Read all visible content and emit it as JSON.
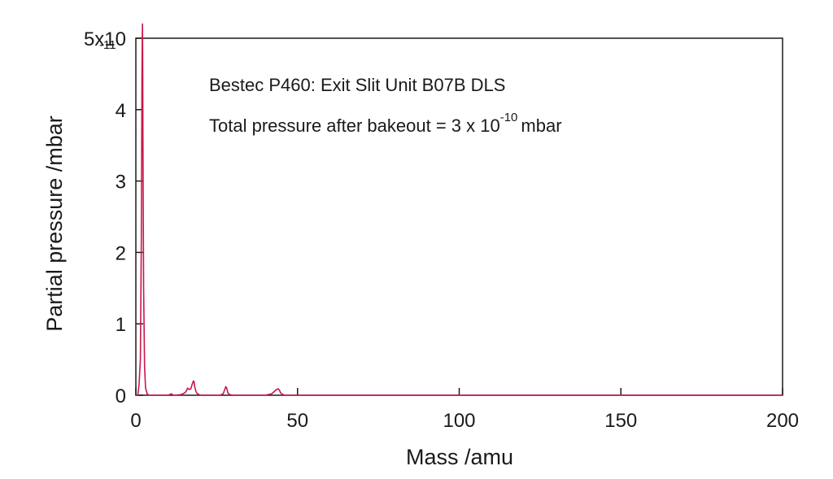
{
  "chart_data": {
    "type": "line",
    "xlabel": "Mass /amu",
    "ylabel": "Partial pressure /mbar",
    "xlim": [
      0,
      200
    ],
    "ylim": [
      0,
      5e-11
    ],
    "x_ticks": [
      0,
      50,
      100,
      150,
      200
    ],
    "x_tick_labels": [
      "0",
      "50",
      "100",
      "150",
      "200"
    ],
    "y_ticks": [
      0,
      1e-11,
      2e-11,
      3e-11,
      4e-11,
      5e-11
    ],
    "y_tick_labels": [
      "0",
      "1",
      "2",
      "3",
      "4",
      "5x10"
    ],
    "y_top_exponent": "-11",
    "grid": false,
    "series_color": "#c8184a",
    "annotations": {
      "line1": "Bestec P460: Exit Slit Unit B07B DLS",
      "line2_prefix": "Total pressure after bakeout = 3 x 10",
      "line2_exponent": "-10",
      "line2_suffix": "mbar"
    },
    "series": [
      {
        "x": [
          0,
          0.6,
          1.0,
          1.4,
          1.7,
          1.9,
          2.0,
          2.05,
          2.1,
          2.2,
          2.4,
          2.7,
          3.0,
          3.5,
          4.0,
          10,
          11,
          11.5,
          12,
          14,
          15,
          15.5,
          16,
          16.5,
          17,
          17.4,
          17.8,
          18.0,
          18.2,
          18.6,
          19,
          19.5,
          20,
          26,
          27,
          27.5,
          27.8,
          28.0,
          28.2,
          28.5,
          29,
          30,
          32,
          40,
          42,
          43,
          43.5,
          44.0,
          44.4,
          44.8,
          45.5,
          46,
          50,
          100,
          150,
          200
        ],
        "y": [
          0,
          0,
          1.5e-12,
          5e-12,
          2.2e-11,
          4.5e-11,
          5e-11,
          5.2e-11,
          4.8e-11,
          3.5e-11,
          1.5e-11,
          4e-12,
          1e-12,
          2e-13,
          0,
          0,
          2e-13,
          0,
          0,
          1e-13,
          3e-13,
          5e-13,
          1e-12,
          8e-13,
          9e-13,
          1.5e-12,
          2e-12,
          1.9e-12,
          1.2e-12,
          5e-13,
          2e-13,
          1e-13,
          0,
          0,
          2e-13,
          8e-13,
          1.2e-12,
          1.1e-12,
          8e-13,
          3e-13,
          1e-13,
          0,
          0,
          0,
          2e-13,
          6e-13,
          8e-13,
          9e-13,
          7e-13,
          3e-13,
          1e-13,
          0,
          0,
          0,
          0,
          0
        ]
      }
    ]
  }
}
